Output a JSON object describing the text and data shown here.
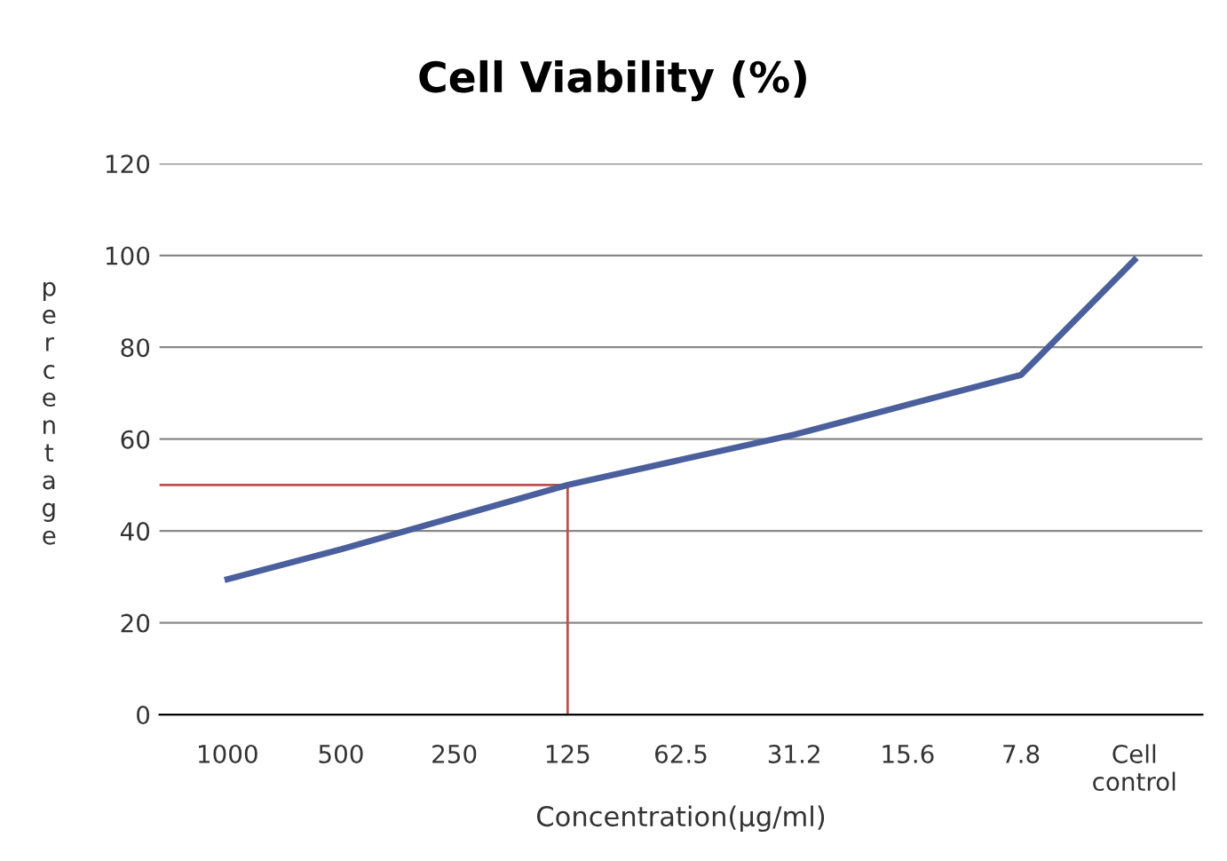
{
  "chart_data": {
    "type": "line",
    "title": "Cell Viability (%)",
    "xlabel": "Concentration(µg/ml)",
    "ylabel": "percentage",
    "categories": [
      "1000",
      "500",
      "250",
      "125",
      "62.5",
      "31.2",
      "15.6",
      "7.8",
      "Cell\ncontrol"
    ],
    "series": [
      {
        "color": "#4a5f9c",
        "values": [
          29.5,
          36,
          43,
          50,
          55.5,
          61,
          67.5,
          74,
          99
        ]
      }
    ],
    "ylim": [
      0,
      120
    ],
    "yticks": [
      0,
      20,
      40,
      60,
      80,
      100,
      120
    ],
    "grid": "y",
    "marker": "none",
    "line_style": "solid",
    "ref_lines": [
      {
        "axis": "y",
        "value": 50,
        "color": "#c0504d"
      },
      {
        "axis": "x",
        "value": "125",
        "color": "#c0504d"
      }
    ]
  }
}
